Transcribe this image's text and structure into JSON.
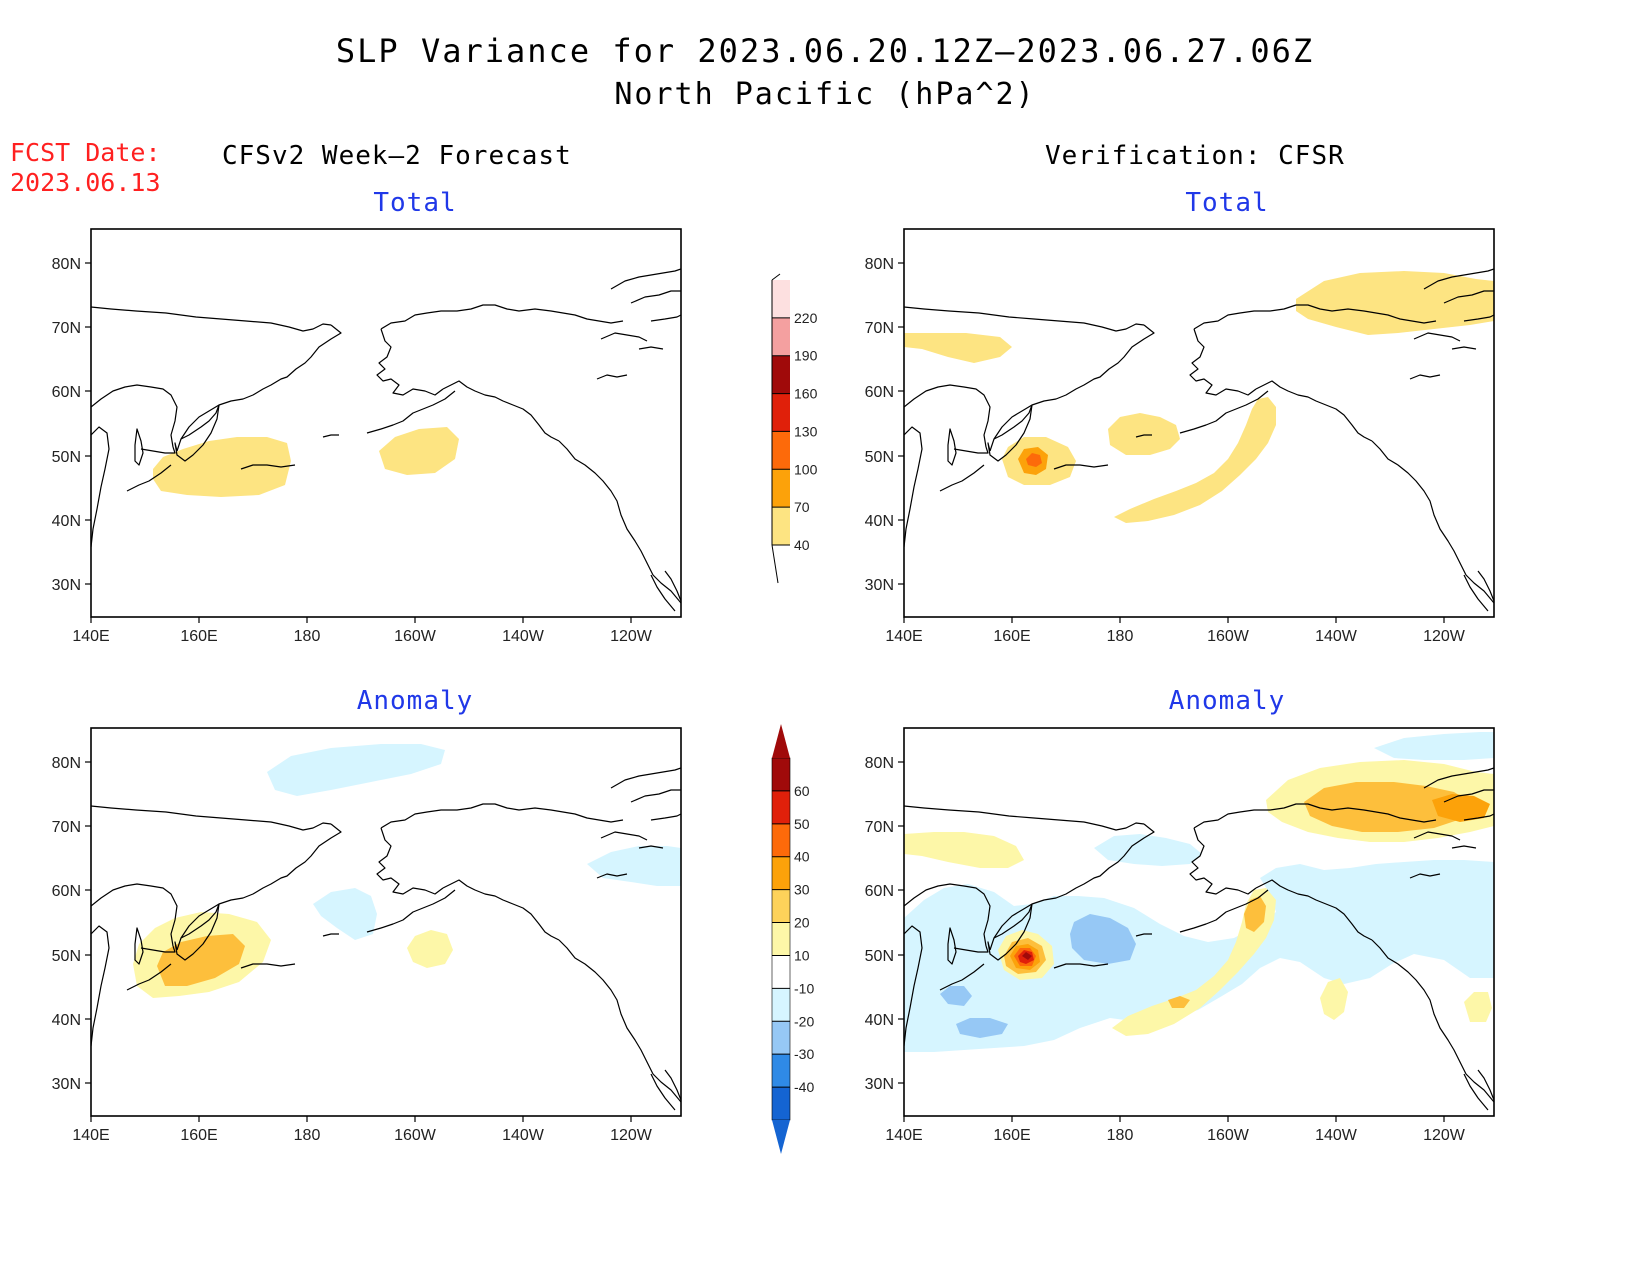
{
  "title": "SLP Variance for 2023.06.20.12Z—2023.06.27.06Z",
  "subtitle": "North Pacific (hPa^2)",
  "fcst_date": {
    "line1": "FCST Date:",
    "line2": "2023.06.13"
  },
  "column_headers": {
    "left": "CFSv2 Week—2 Forecast",
    "right": "Verification: CFSR"
  },
  "panel_labels": {
    "top_left": "Total",
    "top_right": "Total",
    "bottom_left": "Anomaly",
    "bottom_right": "Anomaly"
  },
  "axes": {
    "lat_labels": [
      "80N",
      "70N",
      "60N",
      "50N",
      "40N",
      "30N"
    ],
    "lon_labels": [
      "140E",
      "160E",
      "180",
      "160W",
      "140W",
      "120W"
    ]
  },
  "colorbars": {
    "total": {
      "levels": [
        "40",
        "70",
        "100",
        "130",
        "160",
        "190",
        "220"
      ],
      "colors": [
        "#fde482",
        "#fca20a",
        "#fd6a0a",
        "#e0200a",
        "#a00a0a",
        "#f4a0a0",
        "#fde0e0"
      ]
    },
    "anomaly": {
      "levels": [
        "-40",
        "-30",
        "-20",
        "-10",
        "10",
        "20",
        "30",
        "40",
        "50",
        "60"
      ],
      "colors": [
        "#1464d2",
        "#2f8ae6",
        "#96c8f5",
        "#d6f5ff",
        "#ffffff",
        "#fdf7a8",
        "#fdd25a",
        "#fca20a",
        "#fd6a0a",
        "#e0200a",
        "#a00a0a"
      ]
    }
  },
  "colors": {
    "title_red": "#ff2020",
    "panel_label_blue": "#2038e8"
  }
}
